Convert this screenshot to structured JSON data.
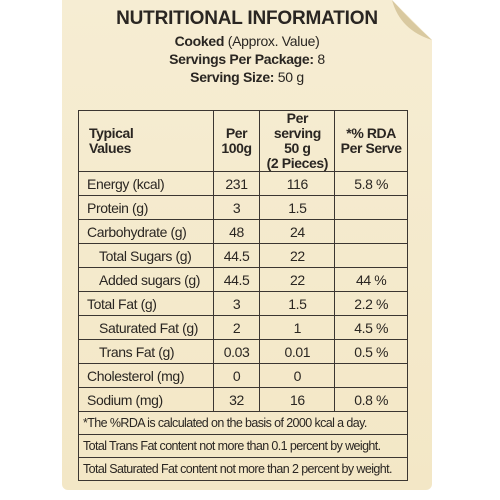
{
  "header": {
    "title": "NUTRITIONAL INFORMATION",
    "lines": [
      [
        "Cooked",
        "(Approx. Value)"
      ],
      [
        "Servings Per Package:",
        "8"
      ],
      [
        "Serving Size:",
        "50 g"
      ]
    ]
  },
  "table": {
    "columns": [
      [
        "Typical",
        "Values"
      ],
      [
        "Per",
        "100g"
      ],
      [
        "Per serving",
        "50 g",
        "(2 Pieces)"
      ],
      [
        "*% RDA",
        "Per Serve"
      ]
    ],
    "rows": [
      {
        "cells": [
          "Energy (kcal)",
          231,
          116,
          "5.8 %"
        ],
        "indent": false
      },
      {
        "cells": [
          "Protein (g)",
          3,
          1.5,
          null
        ],
        "indent": false
      },
      {
        "cells": [
          "Carbohydrate (g)",
          48,
          24,
          null
        ],
        "indent": false
      },
      {
        "cells": [
          "Total Sugars (g)",
          44.5,
          22,
          null
        ],
        "indent": true
      },
      {
        "cells": [
          "Added sugars (g)",
          44.5,
          22,
          "44 %"
        ],
        "indent": true
      },
      {
        "cells": [
          "Total Fat (g)",
          3,
          1.5,
          "2.2 %"
        ],
        "indent": false
      },
      {
        "cells": [
          "Saturated Fat (g)",
          2,
          1,
          "4.5 %"
        ],
        "indent": true
      },
      {
        "cells": [
          "Trans Fat (g)",
          0.03,
          0.01,
          "0.5 %"
        ],
        "indent": true
      },
      {
        "cells": [
          "Cholesterol (mg)",
          0,
          0,
          null
        ],
        "indent": false
      },
      {
        "cells": [
          "Sodium (mg)",
          32,
          16,
          "0.8 %"
        ],
        "indent": false
      }
    ],
    "footnotes": [
      "*The %RDA is calculated on the basis of 2000 kcal a day.",
      "Total Trans Fat content not more than 0.1 percent by weight.",
      "Total Saturated Fat content not more than 2 percent by weight."
    ]
  }
}
